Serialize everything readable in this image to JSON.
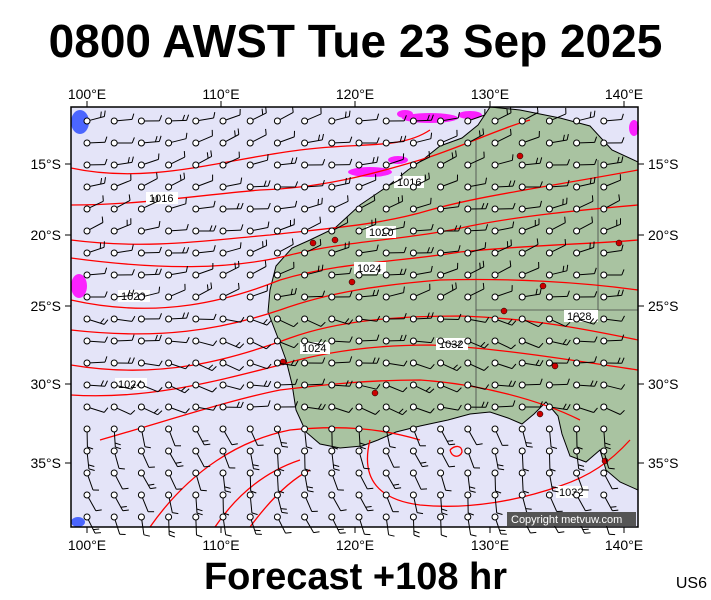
{
  "title": "0800 AWST Tue 23 Sep 2025",
  "subtitle": "Forecast +108 hr",
  "model_code": "US6",
  "copyright": "Copyright metvuw.com",
  "lon_labels": [
    "100°E",
    "110°E",
    "120°E",
    "130°E",
    "140°E"
  ],
  "lat_labels": [
    "15°S",
    "20°S",
    "25°S",
    "30°S",
    "35°S"
  ],
  "isobar_labels": [
    "1016",
    "1016",
    "1020",
    "1020",
    "1024",
    "1024",
    "1024",
    "1028",
    "1032",
    "1032"
  ],
  "colors": {
    "ocean": "#e4e4f8",
    "land": "#a9c3a1",
    "isobar": "#ff0000",
    "rain": "#ff00ff",
    "wind": "#000000",
    "high_marker": "#cc0000"
  }
}
